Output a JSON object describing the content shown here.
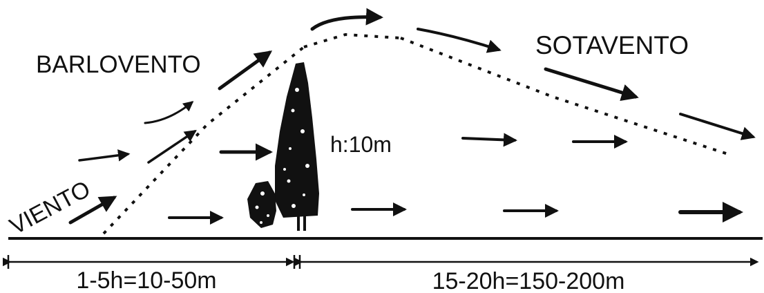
{
  "labels": {
    "windward": "BARLOVENTO",
    "leeward": "SOTAVENTO",
    "wind": "VIENTO",
    "height": "h:10m",
    "windward_distance": "1-5h=10-50m",
    "leeward_distance": "15-20h=150-200m"
  },
  "colors": {
    "ink": "#111111",
    "background": "#ffffff"
  }
}
